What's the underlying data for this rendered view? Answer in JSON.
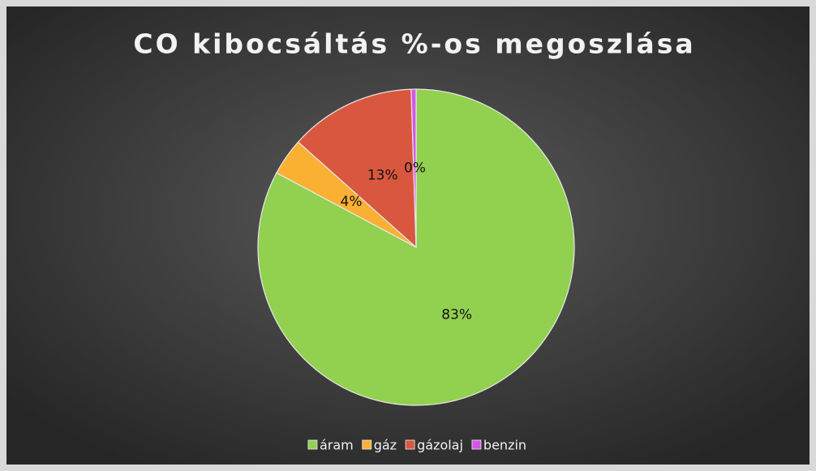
{
  "chart_data": {
    "type": "pie",
    "title": "CO kibocsáltás %-os megoszlása",
    "categories": [
      "áram",
      "gáz",
      "gázolaj",
      "benzin"
    ],
    "values": [
      82.8,
      3.8,
      12.9,
      0.5
    ],
    "value_labels": [
      "83%",
      "4%",
      "13%",
      "0%"
    ],
    "colors": [
      "#92d050",
      "#f9b033",
      "#d9573f",
      "#d356e6"
    ],
    "legend": "bottom"
  }
}
